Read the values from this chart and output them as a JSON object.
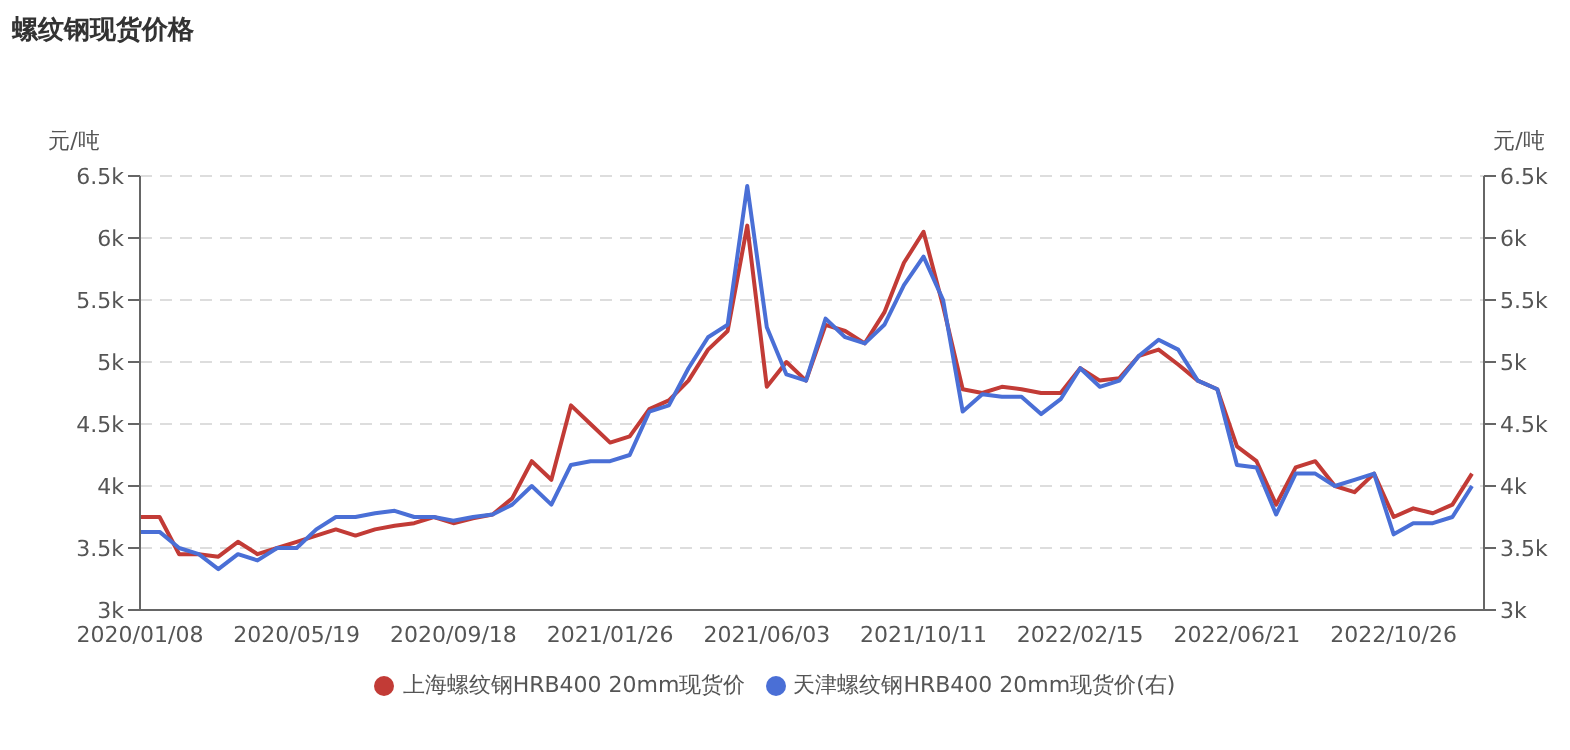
{
  "chart_data": {
    "type": "line",
    "title": "螺纹钢现货价格",
    "ylabel": "元/吨",
    "y2label": "元/吨",
    "categories": [
      "2020/01/08",
      null,
      null,
      null,
      null,
      null,
      null,
      null,
      "2020/05/19",
      null,
      null,
      null,
      null,
      null,
      null,
      null,
      "2020/09/18",
      null,
      null,
      null,
      null,
      null,
      null,
      null,
      "2021/01/26",
      null,
      null,
      null,
      null,
      null,
      null,
      null,
      "2021/06/03",
      null,
      null,
      null,
      null,
      null,
      null,
      null,
      "2021/10/11",
      null,
      null,
      null,
      null,
      null,
      null,
      null,
      "2022/02/15",
      null,
      null,
      null,
      null,
      null,
      null,
      null,
      "2022/06/21",
      null,
      null,
      null,
      null,
      null,
      null,
      null,
      "2022/10/26",
      null,
      null,
      null,
      null
    ],
    "series": [
      {
        "name": "上海螺纹钢HRB400 20mm现货价",
        "color": "#c23b36",
        "values": [
          3750,
          3750,
          3450,
          3450,
          3430,
          3550,
          3450,
          3500,
          3550,
          3600,
          3650,
          3600,
          3650,
          3680,
          3700,
          3750,
          3700,
          3740,
          3770,
          3900,
          4200,
          4050,
          4650,
          4500,
          4350,
          4400,
          4620,
          4690,
          4850,
          5100,
          5250,
          6100,
          4800,
          5000,
          4850,
          5300,
          5250,
          5150,
          5400,
          5800,
          6050,
          5450,
          4780,
          4750,
          4800,
          4780,
          4750,
          4750,
          4950,
          4850,
          4870,
          5050,
          5100,
          4980,
          4850,
          4780,
          4320,
          4200,
          3850,
          4150,
          4200,
          4000,
          3950,
          4100,
          3750,
          3820,
          3780,
          3850,
          4100
        ]
      },
      {
        "name": "天津螺纹钢HRB400 20mm现货价(右)",
        "color": "#4a6fd6",
        "axis": "y2",
        "values": [
          3630,
          3630,
          3500,
          3450,
          3330,
          3450,
          3400,
          3500,
          3500,
          3650,
          3750,
          3750,
          3780,
          3800,
          3750,
          3750,
          3720,
          3750,
          3770,
          3850,
          4000,
          3850,
          4170,
          4200,
          4200,
          4250,
          4600,
          4650,
          4950,
          5200,
          5300,
          6420,
          5280,
          4900,
          4850,
          5350,
          5200,
          5150,
          5300,
          5620,
          5850,
          5500,
          4600,
          4740,
          4720,
          4720,
          4580,
          4700,
          4950,
          4800,
          4850,
          5050,
          5180,
          5100,
          4850,
          4780,
          4170,
          4150,
          3770,
          4100,
          4100,
          4000,
          4050,
          4100,
          3610,
          3700,
          3700,
          3750,
          4000
        ]
      }
    ],
    "ylim": [
      3000,
      6500
    ],
    "yticks": [
      {
        "value": 3000,
        "label": "3k"
      },
      {
        "value": 3500,
        "label": "3.5k"
      },
      {
        "value": 4000,
        "label": "4k"
      },
      {
        "value": 4500,
        "label": "4.5k"
      },
      {
        "value": 5000,
        "label": "5k"
      },
      {
        "value": 5500,
        "label": "5.5k"
      },
      {
        "value": 6000,
        "label": "6k"
      },
      {
        "value": 6500,
        "label": "6.5k"
      }
    ],
    "y2lim": [
      3000,
      6500
    ],
    "y2ticks": [
      {
        "value": 3000,
        "label": "3k"
      },
      {
        "value": 3500,
        "label": "3.5k"
      },
      {
        "value": 4000,
        "label": "4k"
      },
      {
        "value": 4500,
        "label": "4.5k"
      },
      {
        "value": 5000,
        "label": "5k"
      },
      {
        "value": 5500,
        "label": "5.5k"
      },
      {
        "value": 6000,
        "label": "6k"
      },
      {
        "value": 6500,
        "label": "6.5k"
      }
    ],
    "grid": "y",
    "legend": "bottom",
    "marker": "none",
    "line_style": "solid"
  }
}
